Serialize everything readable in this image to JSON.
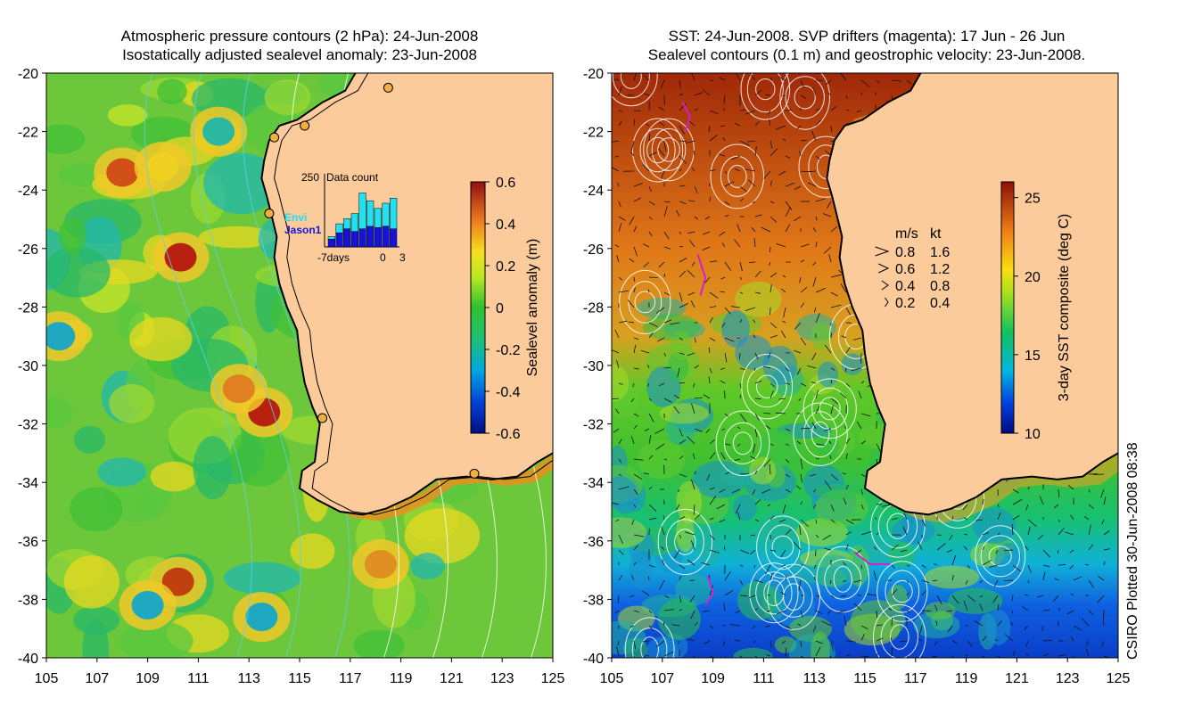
{
  "left_panel": {
    "title_line1": "Atmospheric pressure contours (2 hPa): 24-Jun-2008",
    "title_line2": "Isostatically adjusted sealevel anomaly: 23-Jun-2008",
    "colorbar": {
      "label": "Sealevel anomaly (m)",
      "ticks": [
        "0.6",
        "0.4",
        "0.2",
        "0",
        "-0.2",
        "-0.4",
        "-0.6"
      ],
      "range": [
        -0.6,
        0.6
      ]
    },
    "inset": {
      "title": "Data count",
      "ymax_label": "250",
      "xlabels": [
        "-7days",
        "0",
        "3"
      ],
      "legend_envi": "Envi",
      "legend_jason": "Jason1",
      "envi_color": "#22e0f0",
      "jason_color": "#1414d8",
      "envi_counts": [
        40,
        90,
        110,
        130,
        210,
        180,
        150,
        170,
        190
      ],
      "jason_counts": [
        30,
        55,
        70,
        60,
        70,
        80,
        75,
        80,
        70
      ]
    }
  },
  "right_panel": {
    "title_line1": "SST: 24-Jun-2008. SVP drifters (magenta): 17 Jun - 26 Jun",
    "title_line2": "Sealevel contours (0.1 m) and geostrophic velocity: 23-Jun-2008.",
    "colorbar": {
      "label": "3-day SST composite (deg C)",
      "ticks": [
        "25",
        "20",
        "15",
        "10"
      ],
      "range": [
        10,
        26
      ]
    },
    "velocity_key": {
      "header_ms": "m/s",
      "header_kt": "kt",
      "rows": [
        {
          "ms": "0.8",
          "kt": "1.6"
        },
        {
          "ms": "0.6",
          "kt": "1.2"
        },
        {
          "ms": "0.4",
          "kt": "0.8"
        },
        {
          "ms": "0.2",
          "kt": "0.4"
        }
      ]
    }
  },
  "axes": {
    "lat_ticks": [
      "-20",
      "-22",
      "-24",
      "-26",
      "-28",
      "-30",
      "-32",
      "-34",
      "-36",
      "-38",
      "-40"
    ],
    "lon_ticks": [
      "105",
      "107",
      "109",
      "111",
      "113",
      "115",
      "117",
      "119",
      "121",
      "123",
      "125"
    ],
    "lat_range": [
      -40,
      -20
    ],
    "lon_range": [
      105,
      125
    ]
  },
  "footer": {
    "plotted_label": "CSIRO Plotted 30-Jun-2008 08:38"
  },
  "colors": {
    "land": "#fbcb9b",
    "coast": "#000000",
    "contour": "#ffffff"
  }
}
